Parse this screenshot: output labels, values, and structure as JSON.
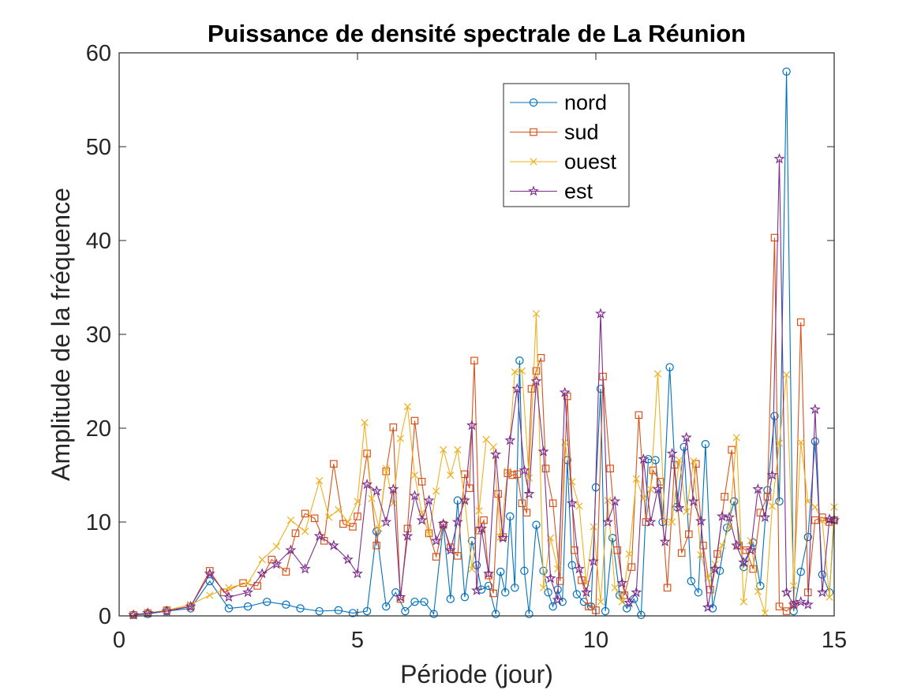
{
  "chart_data": {
    "type": "line",
    "title": "Puissance de densité spectrale de La Réunion",
    "xlabel": "Période (jour)",
    "ylabel": "Amplitude de la fréquence",
    "xlim": [
      0,
      15
    ],
    "ylim": [
      0,
      60
    ],
    "xticks": [
      "0",
      "5",
      "10",
      "15"
    ],
    "yticks": [
      "0",
      "10",
      "20",
      "30",
      "40",
      "50",
      "60"
    ],
    "legend_position": "top-right (inside)",
    "grid": false,
    "box": true,
    "series": [
      {
        "name": "nord",
        "color": "#0072BD",
        "marker": "circle",
        "x": [
          0.3,
          0.6,
          1.0,
          1.5,
          1.9,
          2.3,
          2.7,
          3.1,
          3.5,
          3.8,
          4.2,
          4.6,
          4.9,
          5.2,
          5.4,
          5.6,
          5.8,
          6.0,
          6.2,
          6.4,
          6.6,
          6.8,
          6.95,
          7.1,
          7.25,
          7.4,
          7.5,
          7.6,
          7.75,
          7.9,
          8.0,
          8.1,
          8.2,
          8.3,
          8.4,
          8.5,
          8.6,
          8.75,
          8.9,
          9.0,
          9.1,
          9.2,
          9.3,
          9.4,
          9.5,
          9.6,
          9.75,
          9.9,
          10.0,
          10.1,
          10.2,
          10.35,
          10.5,
          10.65,
          10.8,
          10.95,
          11.1,
          11.25,
          11.4,
          11.55,
          11.7,
          11.85,
          12.0,
          12.15,
          12.3,
          12.45,
          12.6,
          12.75,
          12.9,
          13.1,
          13.3,
          13.45,
          13.6,
          13.75,
          13.85,
          14.0,
          14.15,
          14.3,
          14.45,
          14.6,
          14.75,
          14.9,
          15.0
        ],
        "y": [
          0.1,
          0.2,
          0.5,
          0.8,
          3.7,
          0.8,
          1.0,
          1.5,
          1.2,
          0.8,
          0.5,
          0.6,
          0.3,
          0.5,
          9.0,
          1.0,
          2.5,
          0.5,
          1.5,
          1.5,
          0.2,
          9.7,
          1.8,
          12.3,
          2.0,
          8.0,
          5.4,
          2.8,
          3.2,
          0.2,
          4.7,
          2.5,
          10.6,
          3.0,
          27.2,
          4.8,
          0.2,
          9.7,
          4.8,
          2.5,
          1.0,
          2.8,
          1.5,
          16.6,
          5.4,
          2.3,
          1.5,
          1.0,
          13.7,
          24.2,
          0.5,
          8.3,
          2.2,
          0.8,
          1.8,
          0.1,
          16.7,
          16.6,
          10.0,
          26.5,
          11.6,
          18.0,
          3.7,
          2.5,
          18.3,
          0.8,
          4.8,
          9.4,
          12.2,
          5.2,
          7.8,
          3.2,
          13.4,
          21.3,
          12.2,
          58.0,
          0.5,
          4.7,
          8.4,
          18.6,
          4.4,
          2.5,
          10.2
        ]
      },
      {
        "name": "sud",
        "color": "#D95319",
        "marker": "square",
        "x": [
          0.3,
          0.6,
          1.0,
          1.5,
          1.9,
          2.2,
          2.6,
          2.9,
          3.2,
          3.5,
          3.7,
          3.9,
          4.1,
          4.3,
          4.5,
          4.7,
          4.9,
          5.0,
          5.2,
          5.4,
          5.6,
          5.75,
          5.9,
          6.05,
          6.2,
          6.35,
          6.5,
          6.65,
          6.8,
          6.95,
          7.1,
          7.25,
          7.35,
          7.45,
          7.55,
          7.65,
          7.75,
          7.85,
          7.95,
          8.05,
          8.15,
          8.25,
          8.35,
          8.45,
          8.55,
          8.65,
          8.75,
          8.85,
          8.95,
          9.1,
          9.25,
          9.4,
          9.55,
          9.7,
          9.85,
          10.0,
          10.15,
          10.3,
          10.45,
          10.6,
          10.75,
          10.9,
          11.05,
          11.2,
          11.35,
          11.5,
          11.65,
          11.8,
          11.95,
          12.1,
          12.25,
          12.4,
          12.55,
          12.7,
          12.85,
          13.0,
          13.15,
          13.3,
          13.45,
          13.6,
          13.75,
          13.85,
          14.0,
          14.15,
          14.3,
          14.45,
          14.6,
          14.75,
          14.9,
          15.0
        ],
        "y": [
          0.1,
          0.3,
          0.6,
          1.0,
          4.8,
          2.5,
          3.5,
          3.2,
          6.0,
          4.7,
          8.8,
          10.9,
          10.4,
          8.0,
          16.2,
          9.8,
          9.5,
          10.6,
          17.3,
          7.5,
          15.4,
          20.1,
          1.8,
          9.3,
          20.8,
          14.3,
          8.8,
          6.3,
          9.7,
          7.3,
          6.4,
          15.1,
          13.6,
          27.2,
          9.1,
          10.2,
          4.3,
          2.4,
          13.0,
          8.4,
          15.2,
          15.0,
          15.1,
          12.0,
          11.0,
          24.2,
          26.1,
          27.5,
          15.7,
          12.0,
          3.7,
          23.4,
          7.0,
          3.8,
          1.0,
          0.6,
          25.5,
          15.7,
          7.0,
          2.2,
          5.2,
          21.4,
          10.0,
          15.5,
          14.3,
          3.0,
          16.1,
          6.7,
          8.7,
          16.2,
          7.5,
          2.8,
          6.6,
          12.7,
          17.7,
          7.5,
          7.0,
          5.0,
          11.0,
          12.7,
          40.3,
          1.0,
          0.5,
          1.2,
          31.3,
          2.5,
          10.2,
          10.5,
          10.0,
          10.2
        ]
      },
      {
        "name": "ouest",
        "color": "#EDB120",
        "marker": "x",
        "x": [
          0.3,
          0.6,
          1.0,
          1.5,
          1.9,
          2.3,
          2.7,
          3.0,
          3.3,
          3.6,
          3.9,
          4.2,
          4.4,
          4.6,
          4.8,
          5.0,
          5.15,
          5.3,
          5.45,
          5.6,
          5.75,
          5.9,
          6.05,
          6.2,
          6.35,
          6.5,
          6.65,
          6.8,
          6.95,
          7.1,
          7.25,
          7.4,
          7.55,
          7.7,
          7.85,
          8.0,
          8.15,
          8.3,
          8.45,
          8.6,
          8.75,
          8.9,
          9.05,
          9.2,
          9.35,
          9.5,
          9.65,
          9.8,
          9.95,
          10.1,
          10.25,
          10.4,
          10.55,
          10.7,
          10.85,
          11.0,
          11.15,
          11.3,
          11.45,
          11.6,
          11.75,
          11.9,
          12.05,
          12.2,
          12.35,
          12.5,
          12.65,
          12.8,
          12.95,
          13.1,
          13.25,
          13.4,
          13.55,
          13.7,
          13.85,
          14.0,
          14.15,
          14.3,
          14.45,
          14.6,
          14.75,
          14.9,
          15.0
        ],
        "y": [
          0.1,
          0.3,
          0.6,
          1.2,
          2.2,
          3.0,
          3.5,
          6.0,
          7.4,
          10.2,
          9.0,
          14.4,
          10.5,
          11.3,
          10.0,
          12.2,
          20.6,
          12.5,
          9.3,
          15.7,
          12.0,
          18.9,
          22.3,
          15.0,
          11.0,
          8.7,
          13.3,
          17.7,
          15.0,
          17.7,
          12.3,
          5.0,
          11.2,
          18.8,
          18.0,
          8.4,
          15.4,
          26.0,
          26.1,
          14.7,
          32.2,
          3.0,
          8.3,
          5.0,
          18.5,
          14.3,
          11.7,
          3.5,
          9.5,
          1.5,
          12.3,
          3.0,
          1.5,
          6.6,
          14.6,
          12.5,
          13.5,
          25.8,
          10.0,
          10.0,
          16.6,
          11.1,
          16.5,
          6.5,
          4.0,
          5.5,
          7.5,
          9.5,
          19.0,
          1.5,
          8.0,
          2.6,
          0.3,
          11.7,
          18.4,
          25.7,
          3.2,
          18.5,
          12.2,
          11.6,
          10.1,
          2.0,
          11.6
        ]
      },
      {
        "name": "est",
        "color": "#7E2F8E",
        "marker": "pentagram",
        "x": [
          0.3,
          0.6,
          1.0,
          1.5,
          1.9,
          2.3,
          2.7,
          3.0,
          3.3,
          3.6,
          3.9,
          4.2,
          4.5,
          4.8,
          5.0,
          5.2,
          5.4,
          5.6,
          5.75,
          5.9,
          6.05,
          6.2,
          6.35,
          6.5,
          6.65,
          6.8,
          6.95,
          7.1,
          7.25,
          7.4,
          7.5,
          7.6,
          7.75,
          7.9,
          8.05,
          8.2,
          8.35,
          8.5,
          8.6,
          8.75,
          8.9,
          9.05,
          9.2,
          9.35,
          9.5,
          9.65,
          9.8,
          9.95,
          10.1,
          10.25,
          10.4,
          10.55,
          10.7,
          10.85,
          11.0,
          11.15,
          11.3,
          11.45,
          11.6,
          11.75,
          11.9,
          12.05,
          12.2,
          12.35,
          12.5,
          12.65,
          12.8,
          12.95,
          13.1,
          13.25,
          13.4,
          13.55,
          13.7,
          13.85,
          14.0,
          14.15,
          14.3,
          14.45,
          14.6,
          14.75,
          14.9,
          15.0
        ],
        "y": [
          0.1,
          0.3,
          0.5,
          1.0,
          4.5,
          2.0,
          2.5,
          4.5,
          5.5,
          7.0,
          5.0,
          8.5,
          7.5,
          6.0,
          4.5,
          14.0,
          13.3,
          10.0,
          13.5,
          2.0,
          8.5,
          12.8,
          10.2,
          12.3,
          8.0,
          9.8,
          7.0,
          10.0,
          12.3,
          20.3,
          2.7,
          9.3,
          4.5,
          17.2,
          8.3,
          18.7,
          24.2,
          15.5,
          13.0,
          25.0,
          17.5,
          4.0,
          1.7,
          23.8,
          12.0,
          5.0,
          2.5,
          5.8,
          32.2,
          10.0,
          12.2,
          3.5,
          1.4,
          2.5,
          16.7,
          10.0,
          13.5,
          7.9,
          17.3,
          11.5,
          19.0,
          12.2,
          10.1,
          0.9,
          5.0,
          10.6,
          10.5,
          7.5,
          5.7,
          7.0,
          13.5,
          10.5,
          15.0,
          48.7,
          2.5,
          1.2,
          1.5,
          1.2,
          22.0,
          2.5,
          10.3,
          10.2
        ]
      }
    ]
  }
}
